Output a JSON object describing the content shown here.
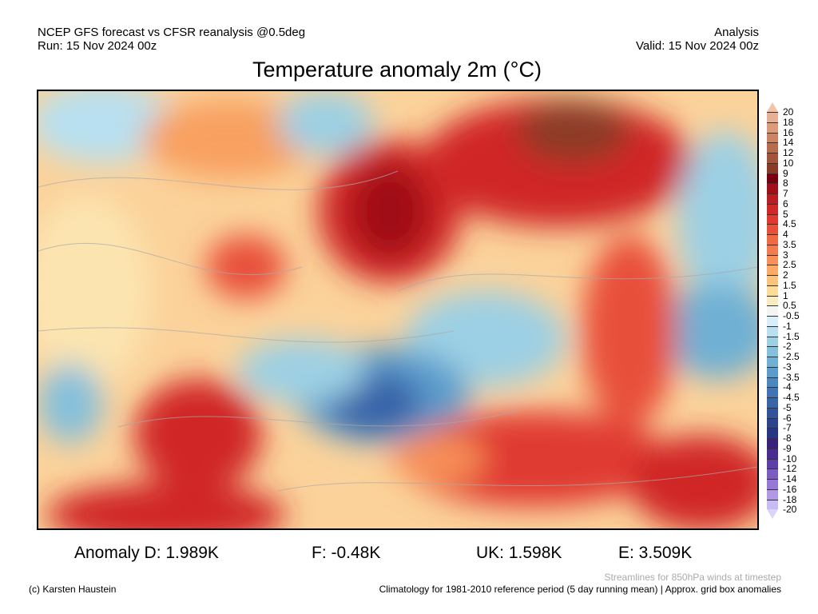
{
  "header": {
    "left_line1": "NCEP GFS forecast vs CFSR reanalysis @0.5deg",
    "left_line2": "Run: 15 Nov 2024 00z",
    "right_line1": "Analysis",
    "right_line2": "Valid: 15 Nov 2024 00z"
  },
  "title": "Temperature anomaly 2m (°C)",
  "colorbar": {
    "labels": [
      "20",
      "18",
      "16",
      "14",
      "12",
      "10",
      "9",
      "8",
      "7",
      "6",
      "5",
      "4.5",
      "4",
      "3.5",
      "3",
      "2.5",
      "2",
      "1.5",
      "1",
      "0.5",
      "-0.5",
      "-1",
      "-1.5",
      "-2",
      "-2.5",
      "-3",
      "-3.5",
      "-4",
      "-4.5",
      "-5",
      "-6",
      "-7",
      "-8",
      "-9",
      "-10",
      "-12",
      "-14",
      "-16",
      "-18",
      "-20"
    ],
    "colors": [
      "#e8b092",
      "#dc9c7c",
      "#cc8464",
      "#b86c4c",
      "#a4543a",
      "#8c3a28",
      "#7a0010",
      "#a01018",
      "#bb1e20",
      "#d02828",
      "#e03a30",
      "#e8503a",
      "#f06a44",
      "#f47c4c",
      "#f89058",
      "#fcaa64",
      "#fcc478",
      "#fcdc98",
      "#f8ecc0",
      "#f4f4f4",
      "#d8eefa",
      "#b8e0f0",
      "#9cd0e4",
      "#84c0dc",
      "#70b0d4",
      "#5c9ccc",
      "#4c88c0",
      "#4074b4",
      "#3864a8",
      "#30549c",
      "#2c4490",
      "#283484",
      "#38207c",
      "#482c90",
      "#5c40a8",
      "#7c5cc4",
      "#9678d8",
      "#b09ae8",
      "#c8bcf4"
    ],
    "top_triangle": "#f2c4a8",
    "bottom_triangle": "#dcd4f8"
  },
  "stats": {
    "d": "Anomaly D: 1.989K",
    "f": "F: -0.48K",
    "uk": "UK: 1.598K",
    "e": "E: 3.509K"
  },
  "footer": {
    "credit": "(c) Karsten Haustein",
    "streamlines": "Streamlines for 850hPa winds at timestep",
    "climatology": "Climatology for 1981-2010 reference period (5 day running mean) | Approx. grid box anomalies"
  }
}
